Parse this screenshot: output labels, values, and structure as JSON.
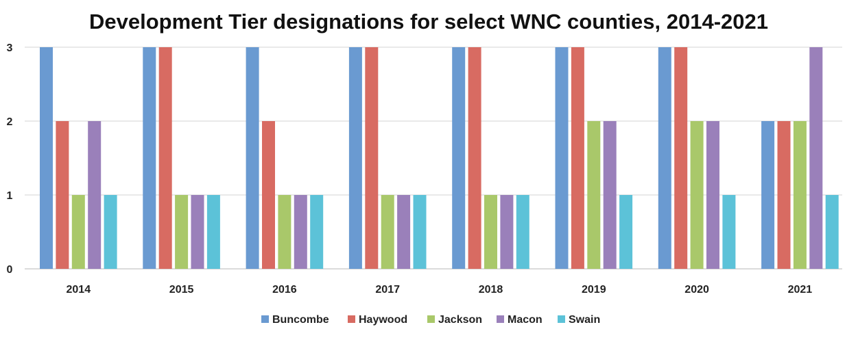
{
  "chart_data": {
    "type": "bar",
    "title": "Development Tier designations for select WNC counties, 2014-2021",
    "xlabel": "",
    "ylabel": "",
    "categories": [
      "2014",
      "2015",
      "2016",
      "2017",
      "2018",
      "2019",
      "2020",
      "2021"
    ],
    "ylim": [
      0,
      3
    ],
    "yticks": [
      0,
      1,
      2,
      3
    ],
    "grid": true,
    "legend_position": "bottom",
    "series": [
      {
        "name": "Buncombe",
        "color": "#6a9ad1",
        "values": [
          3,
          3,
          3,
          3,
          3,
          3,
          3,
          2
        ]
      },
      {
        "name": "Haywood",
        "color": "#d86b62",
        "values": [
          2,
          3,
          2,
          3,
          3,
          3,
          3,
          2
        ]
      },
      {
        "name": "Jackson",
        "color": "#a9c86a",
        "values": [
          1,
          1,
          1,
          1,
          1,
          2,
          2,
          2
        ]
      },
      {
        "name": "Macon",
        "color": "#9a80ba",
        "values": [
          2,
          1,
          1,
          1,
          1,
          2,
          2,
          3
        ]
      },
      {
        "name": "Swain",
        "color": "#5cc2d8",
        "values": [
          1,
          1,
          1,
          1,
          1,
          1,
          1,
          1
        ]
      }
    ]
  }
}
